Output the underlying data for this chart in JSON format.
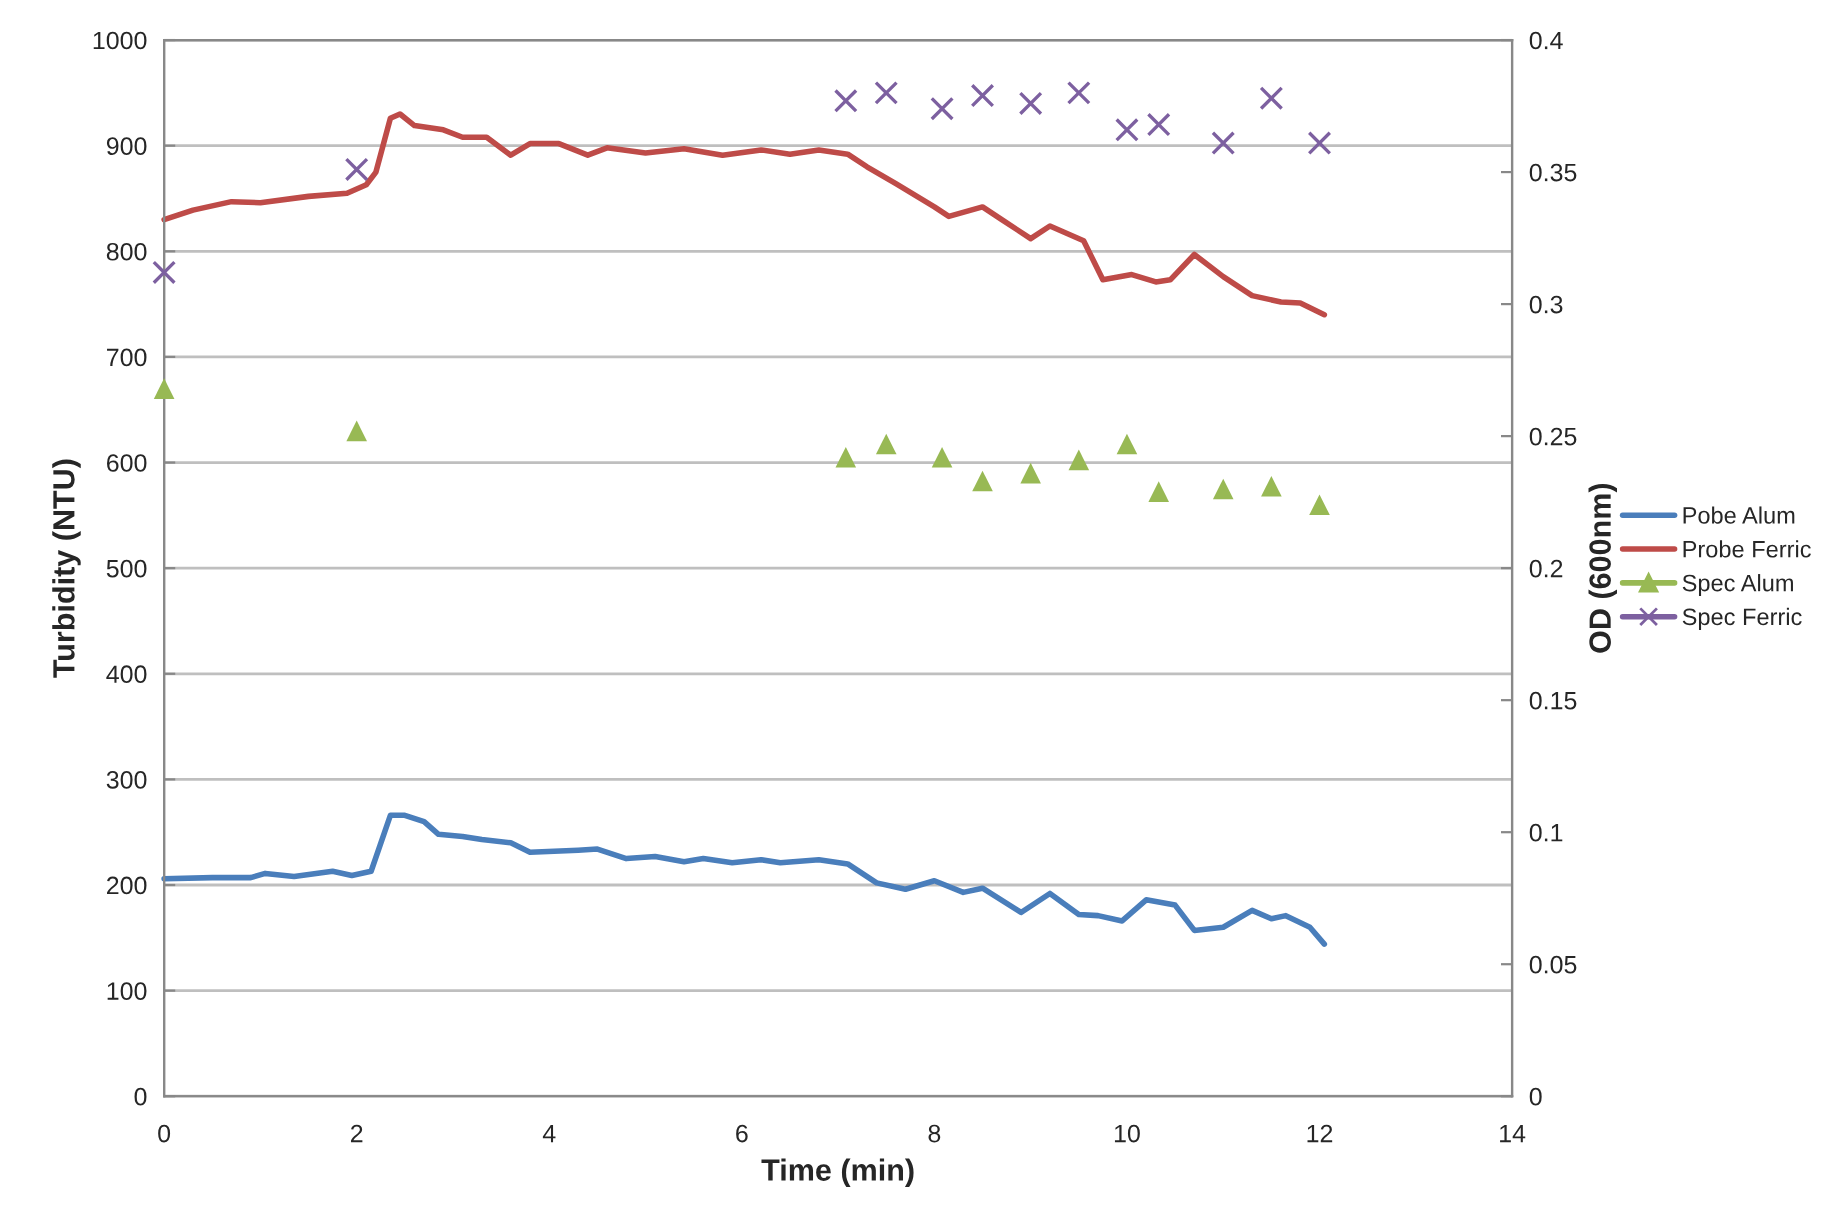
{
  "chart_data": {
    "type": "line",
    "xlabel": "Time (min)",
    "ylabel": "Turbidity (NTU)",
    "y2label": "OD (600nm)",
    "xlim": [
      0,
      14
    ],
    "xticks": [
      0,
      2,
      4,
      6,
      8,
      10,
      12,
      14
    ],
    "ylim": [
      0,
      1000
    ],
    "yticks": [
      0,
      100,
      200,
      300,
      400,
      500,
      600,
      700,
      800,
      900,
      1000
    ],
    "y2lim": [
      0,
      0.4
    ],
    "y2ticks": [
      0,
      0.05,
      0.1,
      0.15,
      0.2,
      0.25,
      0.3,
      0.35,
      0.4
    ],
    "grid": "y",
    "legend": "right",
    "series": [
      {
        "name": "Pobe Alum",
        "color": "#4a7ebb",
        "type": "line",
        "marker": "none",
        "x": [
          0,
          0.5,
          0.9,
          1.05,
          1.35,
          1.75,
          1.95,
          2.15,
          2.35,
          2.5,
          2.7,
          2.85,
          3.1,
          3.3,
          3.6,
          3.8,
          4.3,
          4.5,
          4.8,
          5.1,
          5.4,
          5.6,
          5.9,
          6.2,
          6.4,
          6.8,
          7.1,
          7.4,
          7.7,
          8.0,
          8.3,
          8.5,
          8.9,
          9.2,
          9.5,
          9.7,
          9.95,
          10.2,
          10.5,
          10.7,
          11.0,
          11.3,
          11.5,
          11.65,
          11.9,
          12.05
        ],
        "values": [
          206,
          207,
          207,
          211,
          208,
          213,
          209,
          213,
          266,
          266,
          260,
          248,
          246,
          243,
          240,
          231,
          233,
          234,
          225,
          227,
          222,
          225,
          221,
          224,
          221,
          224,
          220,
          202,
          196,
          204,
          193,
          197,
          174,
          192,
          172,
          171,
          166,
          186,
          181,
          157,
          160,
          176,
          168,
          171,
          160,
          144
        ]
      },
      {
        "name": "Probe Ferric",
        "color": "#be4b48",
        "type": "line",
        "marker": "none",
        "x": [
          0,
          0.3,
          0.7,
          1.0,
          1.5,
          1.9,
          2.1,
          2.2,
          2.35,
          2.45,
          2.6,
          2.9,
          3.1,
          3.35,
          3.6,
          3.8,
          4.1,
          4.4,
          4.6,
          5.0,
          5.4,
          5.8,
          6.2,
          6.5,
          6.8,
          7.1,
          7.3,
          7.6,
          8.0,
          8.15,
          8.5,
          8.7,
          9.0,
          9.2,
          9.55,
          9.75,
          10.05,
          10.3,
          10.45,
          10.7,
          11.0,
          11.3,
          11.6,
          11.8,
          12.05
        ],
        "values": [
          830,
          839,
          847,
          846,
          852,
          855,
          863,
          875,
          926,
          930,
          919,
          915,
          908,
          908,
          891,
          902,
          902,
          891,
          898,
          893,
          897,
          891,
          896,
          892,
          896,
          892,
          880,
          864,
          842,
          833,
          842,
          830,
          812,
          824,
          810,
          773,
          778,
          771,
          773,
          797,
          776,
          758,
          752,
          751,
          740
        ]
      },
      {
        "name": "Spec Alum",
        "color": "#98b954",
        "type": "scatter",
        "marker": "triangle",
        "axis": "y2",
        "x": [
          0,
          2,
          7.08,
          7.5,
          8.08,
          8.5,
          9.0,
          9.5,
          10.0,
          10.33,
          11.0,
          11.5,
          12.0
        ],
        "values": [
          0.268,
          0.252,
          0.242,
          0.247,
          0.242,
          0.233,
          0.236,
          0.241,
          0.247,
          0.229,
          0.23,
          0.231,
          0.224
        ]
      },
      {
        "name": "Spec Ferric",
        "color": "#7d60a0",
        "type": "scatter",
        "marker": "cross",
        "axis": "y2",
        "x": [
          0,
          2,
          7.08,
          7.5,
          8.08,
          8.5,
          9.0,
          9.5,
          10.0,
          10.33,
          11.0,
          11.5,
          12.0
        ],
        "values": [
          0.312,
          0.351,
          0.377,
          0.38,
          0.374,
          0.379,
          0.376,
          0.38,
          0.366,
          0.368,
          0.361,
          0.378,
          0.361
        ]
      }
    ]
  }
}
